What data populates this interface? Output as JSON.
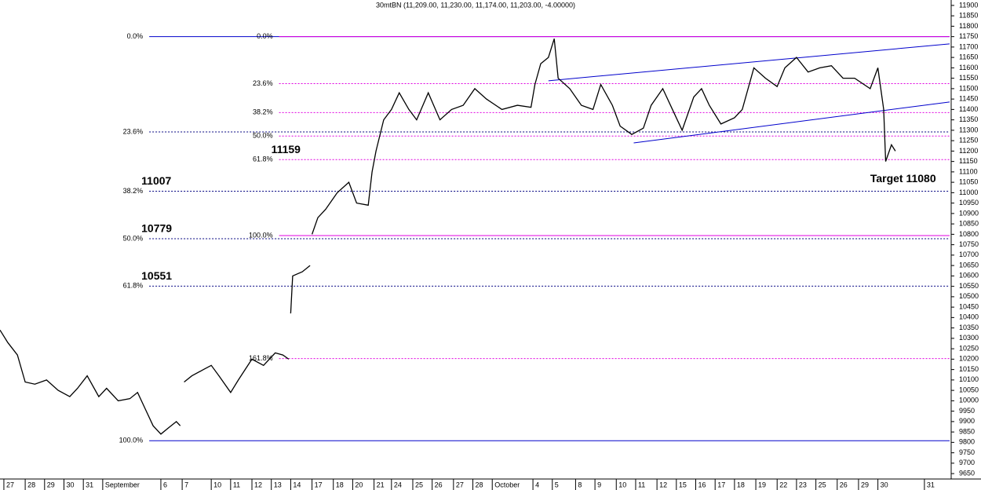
{
  "chart_data": {
    "type": "line",
    "title": "30mtBN (11,209.00, 11,230.00, 11,174.00, 11,203.00, -4.00000)",
    "xlim": [
      0,
      49
    ],
    "ylim": [
      9624,
      11926
    ],
    "xticks": [
      {
        "value": 0.2,
        "label": "27"
      },
      {
        "value": 1.3,
        "label": "28"
      },
      {
        "value": 2.3,
        "label": "29"
      },
      {
        "value": 3.3,
        "label": "30"
      },
      {
        "value": 4.3,
        "label": "31"
      },
      {
        "value": 5.3,
        "label": "September"
      },
      {
        "value": 8.3,
        "label": "6"
      },
      {
        "value": 9.4,
        "label": "7"
      },
      {
        "value": 10.9,
        "label": "10"
      },
      {
        "value": 11.9,
        "label": "11"
      },
      {
        "value": 13.0,
        "label": "12"
      },
      {
        "value": 14.0,
        "label": "13"
      },
      {
        "value": 15.0,
        "label": "14"
      },
      {
        "value": 16.1,
        "label": "17"
      },
      {
        "value": 17.2,
        "label": "18"
      },
      {
        "value": 18.2,
        "label": "20"
      },
      {
        "value": 19.3,
        "label": "21"
      },
      {
        "value": 20.2,
        "label": "24"
      },
      {
        "value": 21.3,
        "label": "25"
      },
      {
        "value": 22.3,
        "label": "26"
      },
      {
        "value": 23.4,
        "label": "27"
      },
      {
        "value": 24.4,
        "label": "28"
      },
      {
        "value": 25.4,
        "label": "October"
      },
      {
        "value": 27.5,
        "label": "4"
      },
      {
        "value": 28.5,
        "label": "5"
      },
      {
        "value": 29.7,
        "label": "8"
      },
      {
        "value": 30.7,
        "label": "9"
      },
      {
        "value": 31.8,
        "label": "10"
      },
      {
        "value": 32.8,
        "label": "11"
      },
      {
        "value": 33.9,
        "label": "12"
      },
      {
        "value": 34.9,
        "label": "15"
      },
      {
        "value": 35.9,
        "label": "16"
      },
      {
        "value": 36.9,
        "label": "17"
      },
      {
        "value": 37.9,
        "label": "18"
      },
      {
        "value": 39.0,
        "label": "19"
      },
      {
        "value": 40.1,
        "label": "22"
      },
      {
        "value": 41.1,
        "label": "23"
      },
      {
        "value": 42.1,
        "label": "25"
      },
      {
        "value": 43.2,
        "label": "26"
      },
      {
        "value": 44.3,
        "label": "29"
      },
      {
        "value": 45.3,
        "label": "30"
      },
      {
        "value": 47.7,
        "label": "31"
      }
    ],
    "yticks": [
      9650,
      9700,
      9750,
      9800,
      9850,
      9900,
      9950,
      10000,
      10050,
      10100,
      10150,
      10200,
      10250,
      10300,
      10350,
      10400,
      10450,
      10500,
      10550,
      10600,
      10650,
      10700,
      10750,
      10800,
      10850,
      10900,
      10950,
      11000,
      11050,
      11100,
      11150,
      11200,
      11250,
      11300,
      11350,
      11400,
      11450,
      11500,
      11550,
      11600,
      11650,
      11700,
      11750,
      11800,
      11850,
      11900
    ],
    "series": [
      {
        "color": "#000000",
        "x": [
          0,
          0.4,
          0.9,
          1.3,
          1.8,
          2.4,
          3.0,
          3.6,
          4.0,
          4.5,
          5.1,
          5.5,
          6.1,
          6.7,
          7.1,
          7.5,
          7.9,
          8.3,
          8.7,
          9.1,
          9.3,
          null,
          9.5,
          9.9,
          10.5,
          10.9,
          11.3,
          11.9,
          12.3,
          13.0,
          13.6,
          14.2,
          14.6,
          14.9,
          null,
          15.0,
          15.1,
          15.6,
          16.0,
          null,
          16.1,
          16.4,
          16.8,
          17.4,
          18.0,
          18.4,
          19.0,
          19.2,
          19.4,
          19.8,
          20.2,
          20.6,
          21.1,
          21.5,
          22.1,
          22.7,
          23.3,
          23.9,
          24.5,
          25.1,
          25.9,
          26.7,
          27.4,
          27.6,
          27.9,
          28.3,
          28.6,
          28.8,
          29.4,
          30.0,
          30.6,
          31.0,
          31.6,
          32.0,
          32.6,
          33.2,
          33.6,
          34.2,
          34.8,
          35.2,
          35.8,
          36.2,
          36.6,
          37.2,
          37.9,
          38.3,
          38.9,
          39.5,
          40.1,
          40.5,
          41.1,
          41.7,
          42.3,
          42.9,
          43.5,
          44.1,
          44.9,
          45.3,
          45.6,
          45.7,
          46.0,
          46.2
        ],
        "values": [
          10340,
          10280,
          10220,
          10090,
          10080,
          10100,
          10050,
          10020,
          10060,
          10120,
          10020,
          10060,
          10000,
          10010,
          10040,
          9960,
          9880,
          9840,
          9870,
          9900,
          9880,
          null,
          10090,
          10120,
          10150,
          10170,
          10120,
          10040,
          10100,
          10200,
          10170,
          10230,
          10220,
          10200,
          null,
          10420,
          10600,
          10620,
          10650,
          null,
          10800,
          10880,
          10920,
          11000,
          11050,
          10950,
          10940,
          11100,
          11200,
          11350,
          11400,
          11480,
          11400,
          11350,
          11480,
          11350,
          11400,
          11420,
          11500,
          11450,
          11400,
          11420,
          11410,
          11520,
          11620,
          11650,
          11740,
          11550,
          11500,
          11420,
          11400,
          11520,
          11420,
          11320,
          11280,
          11310,
          11420,
          11500,
          11380,
          11300,
          11460,
          11500,
          11420,
          11330,
          11360,
          11400,
          11600,
          11550,
          11510,
          11600,
          11650,
          11580,
          11600,
          11610,
          11550,
          11550,
          11500,
          11600,
          11400,
          11150,
          11230,
          11200
        ]
      }
    ],
    "fib_sets": [
      {
        "x_start": 7.7,
        "color": "#0000cc",
        "levels": [
          {
            "label": "0.0%",
            "value": 11750,
            "style": "solid"
          },
          {
            "label": "23.6%",
            "value": 11292,
            "style": "dotted"
          },
          {
            "label": "38.2%",
            "value": 11007,
            "style": "dotted",
            "value_label": true
          },
          {
            "label": "50.0%",
            "value": 10779,
            "style": "dotted",
            "value_label": true
          },
          {
            "label": "61.8%",
            "value": 10551,
            "style": "dotted",
            "value_label": true
          },
          {
            "label": "100.0%",
            "value": 9808,
            "style": "solid"
          }
        ]
      },
      {
        "x_start": 14.4,
        "color": "#e000e0",
        "levels": [
          {
            "label": "0.0%",
            "value": 11750,
            "style": "solid"
          },
          {
            "label": "23.6%",
            "value": 11524,
            "style": "dotted"
          },
          {
            "label": "38.2%",
            "value": 11385,
            "style": "dotted"
          },
          {
            "label": "50.0%",
            "value": 11272,
            "style": "dotted"
          },
          {
            "label": "61.8%",
            "value": 11159,
            "style": "dotted",
            "value_label": true
          },
          {
            "label": "100.0%",
            "value": 10794,
            "style": "solid"
          },
          {
            "label": "161.8%",
            "value": 10203,
            "style": "dotted"
          }
        ]
      }
    ],
    "trendlines": [
      {
        "color": "#0000cc",
        "x": [
          28.3,
          49
        ],
        "values": [
          11538,
          11715
        ]
      },
      {
        "color": "#0000cc",
        "x": [
          32.7,
          49
        ],
        "values": [
          11239,
          11436
        ]
      }
    ],
    "annotations": [
      {
        "text": "Target 11080",
        "x": 46.6,
        "value": 11080,
        "color": "#0000cc"
      }
    ]
  }
}
